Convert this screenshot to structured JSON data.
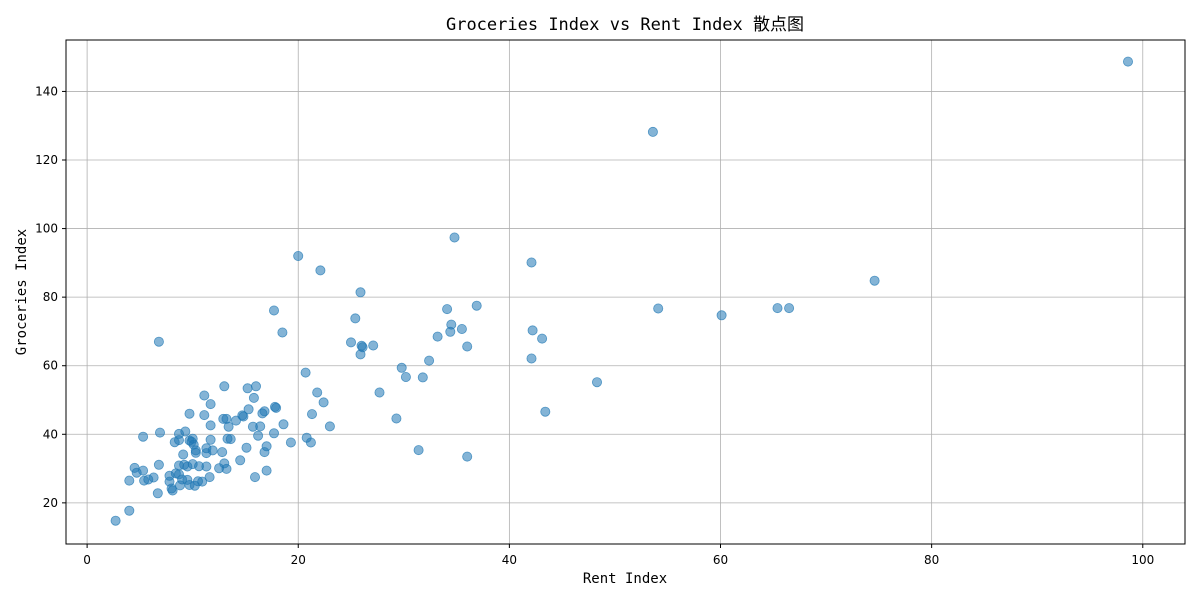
{
  "chart_data": {
    "type": "scatter",
    "title": "Groceries Index vs Rent Index 散点图",
    "xlabel": "Rent Index",
    "ylabel": "Groceries Index",
    "xlim": [
      -2,
      104
    ],
    "ylim": [
      8,
      155
    ],
    "xticks": [
      0,
      20,
      40,
      60,
      80,
      100
    ],
    "yticks": [
      20,
      40,
      60,
      80,
      100,
      120,
      140
    ],
    "grid": true,
    "point_color": "#1f77b4",
    "point_opacity": 0.55,
    "points": [
      [
        98.6,
        148.7
      ],
      [
        53.6,
        128.2
      ],
      [
        74.6,
        84.8
      ],
      [
        34.8,
        97.4
      ],
      [
        42.1,
        90.1
      ],
      [
        20.0,
        92.0
      ],
      [
        22.1,
        87.8
      ],
      [
        25.9,
        81.4
      ],
      [
        36.9,
        77.5
      ],
      [
        34.1,
        76.5
      ],
      [
        54.1,
        76.7
      ],
      [
        60.1,
        74.7
      ],
      [
        65.4,
        76.8
      ],
      [
        66.5,
        76.8
      ],
      [
        17.7,
        76.1
      ],
      [
        25.4,
        73.8
      ],
      [
        18.5,
        69.7
      ],
      [
        34.5,
        72.0
      ],
      [
        35.5,
        70.7
      ],
      [
        34.4,
        69.9
      ],
      [
        42.2,
        70.3
      ],
      [
        43.1,
        67.9
      ],
      [
        33.2,
        68.5
      ],
      [
        6.8,
        67.0
      ],
      [
        25.0,
        66.8
      ],
      [
        26.0,
        65.8
      ],
      [
        26.1,
        65.4
      ],
      [
        27.1,
        65.9
      ],
      [
        36.0,
        65.6
      ],
      [
        25.9,
        63.3
      ],
      [
        42.1,
        62.1
      ],
      [
        32.4,
        61.5
      ],
      [
        29.8,
        59.4
      ],
      [
        20.7,
        58.0
      ],
      [
        30.2,
        56.7
      ],
      [
        31.8,
        56.6
      ],
      [
        48.3,
        55.2
      ],
      [
        13.0,
        54.0
      ],
      [
        16.0,
        54.0
      ],
      [
        15.2,
        53.4
      ],
      [
        21.8,
        52.2
      ],
      [
        27.7,
        52.2
      ],
      [
        11.1,
        51.3
      ],
      [
        15.8,
        50.6
      ],
      [
        22.4,
        49.3
      ],
      [
        11.7,
        48.8
      ],
      [
        17.8,
        48.0
      ],
      [
        17.9,
        47.7
      ],
      [
        15.3,
        47.3
      ],
      [
        16.8,
        46.7
      ],
      [
        43.4,
        46.6
      ],
      [
        9.7,
        46.0
      ],
      [
        16.6,
        46.1
      ],
      [
        21.3,
        45.9
      ],
      [
        11.1,
        45.6
      ],
      [
        14.7,
        45.5
      ],
      [
        14.8,
        45.2
      ],
      [
        13.2,
        44.5
      ],
      [
        12.9,
        44.5
      ],
      [
        29.3,
        44.6
      ],
      [
        14.1,
        44.0
      ],
      [
        18.6,
        42.9
      ],
      [
        11.7,
        42.6
      ],
      [
        16.4,
        42.3
      ],
      [
        13.4,
        42.2
      ],
      [
        15.7,
        42.2
      ],
      [
        23.0,
        42.3
      ],
      [
        6.9,
        40.5
      ],
      [
        9.3,
        40.8
      ],
      [
        17.7,
        40.3
      ],
      [
        8.7,
        40.1
      ],
      [
        16.2,
        39.6
      ],
      [
        5.3,
        39.3
      ],
      [
        10.0,
        38.7
      ],
      [
        20.8,
        39.0
      ],
      [
        13.6,
        38.6
      ],
      [
        13.3,
        38.7
      ],
      [
        11.7,
        38.4
      ],
      [
        8.7,
        38.3
      ],
      [
        9.7,
        38.2
      ],
      [
        8.3,
        37.7
      ],
      [
        9.9,
        37.8
      ],
      [
        19.3,
        37.6
      ],
      [
        21.2,
        37.6
      ],
      [
        10.1,
        37.0
      ],
      [
        17.0,
        36.5
      ],
      [
        11.3,
        35.9
      ],
      [
        15.1,
        36.1
      ],
      [
        10.3,
        35.3
      ],
      [
        11.9,
        35.3
      ],
      [
        31.4,
        35.4
      ],
      [
        12.8,
        34.8
      ],
      [
        16.8,
        34.8
      ],
      [
        10.3,
        34.6
      ],
      [
        11.3,
        34.5
      ],
      [
        9.1,
        34.1
      ],
      [
        36.0,
        33.5
      ],
      [
        14.5,
        32.4
      ],
      [
        13.0,
        31.5
      ],
      [
        10.0,
        31.3
      ],
      [
        6.8,
        31.1
      ],
      [
        9.2,
        31.1
      ],
      [
        8.7,
        30.9
      ],
      [
        11.3,
        30.6
      ],
      [
        10.6,
        30.7
      ],
      [
        9.5,
        30.6
      ],
      [
        4.5,
        30.2
      ],
      [
        12.5,
        30.1
      ],
      [
        13.2,
        29.9
      ],
      [
        17.0,
        29.4
      ],
      [
        5.3,
        29.4
      ],
      [
        4.7,
        28.8
      ],
      [
        8.4,
        28.6
      ],
      [
        8.7,
        28.3
      ],
      [
        7.8,
        27.9
      ],
      [
        6.3,
        27.4
      ],
      [
        15.9,
        27.5
      ],
      [
        11.6,
        27.5
      ],
      [
        5.4,
        26.5
      ],
      [
        4.0,
        26.5
      ],
      [
        9.0,
        26.8
      ],
      [
        9.5,
        26.7
      ],
      [
        10.5,
        26.3
      ],
      [
        7.8,
        26.2
      ],
      [
        5.8,
        26.8
      ],
      [
        10.9,
        26.2
      ],
      [
        8.8,
        25.1
      ],
      [
        9.7,
        25.2
      ],
      [
        10.2,
        25.0
      ],
      [
        8.0,
        24.2
      ],
      [
        8.1,
        23.6
      ],
      [
        6.7,
        22.8
      ],
      [
        4.0,
        17.7
      ],
      [
        2.7,
        14.8
      ]
    ]
  }
}
